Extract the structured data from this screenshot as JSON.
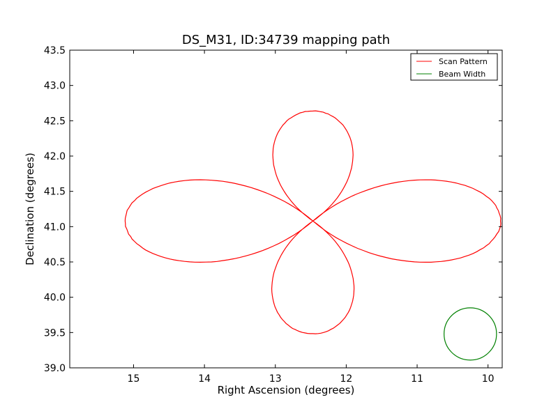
{
  "chart_data": {
    "type": "line",
    "title": "DS_M31, ID:34739 mapping path",
    "xlabel": "Right Ascension (degrees)",
    "ylabel": "Declination (degrees)",
    "xlim": [
      15.9,
      9.8
    ],
    "ylim": [
      39.0,
      43.5
    ],
    "xticks": [
      15,
      14,
      13,
      12,
      11,
      10
    ],
    "xtick_labels": [
      "15",
      "14",
      "13",
      "12",
      "11",
      "10"
    ],
    "yticks": [
      39.0,
      39.5,
      40.0,
      40.5,
      41.0,
      41.5,
      42.0,
      42.5,
      43.0,
      43.5
    ],
    "ytick_labels": [
      "39.0",
      "39.5",
      "40.0",
      "40.5",
      "41.0",
      "41.5",
      "42.0",
      "42.5",
      "43.0",
      "43.5"
    ],
    "grid": false,
    "legend_position": "top-right",
    "series": [
      {
        "name": "Scan Pattern",
        "color": "#ff0000",
        "center_ra": 12.47,
        "center_dec": 41.08,
        "petals": [
          {
            "axis_angle_deg": 90,
            "length": 2.0
          },
          {
            "axis_angle_deg": 0,
            "length": 2.65
          },
          {
            "axis_angle_deg": -90,
            "length": 2.05
          },
          {
            "axis_angle_deg": 180,
            "length": 2.65
          }
        ]
      },
      {
        "name": "Beam Width",
        "color": "#008000",
        "center_ra": 10.25,
        "center_dec": 39.48,
        "radius_ra": 0.37,
        "radius_dec": 0.37
      }
    ]
  }
}
